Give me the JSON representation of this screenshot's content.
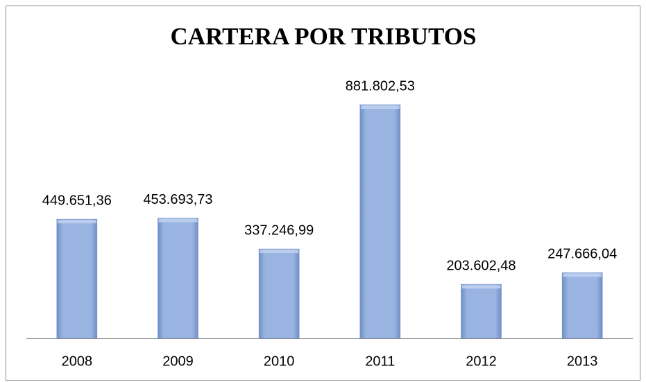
{
  "chart_data": {
    "type": "bar",
    "title": "CARTERA POR TRIBUTOS",
    "categories": [
      "2008",
      "2009",
      "2010",
      "2011",
      "2012",
      "2013"
    ],
    "values": [
      449651.36,
      453693.73,
      337246.99,
      881802.53,
      203602.48,
      247666.04
    ],
    "value_labels": [
      "449.651,36",
      "453.693,73",
      "337.246,99",
      "881.802,53",
      "203.602,48",
      "247.666,04"
    ],
    "color": "#8eabdc"
  }
}
